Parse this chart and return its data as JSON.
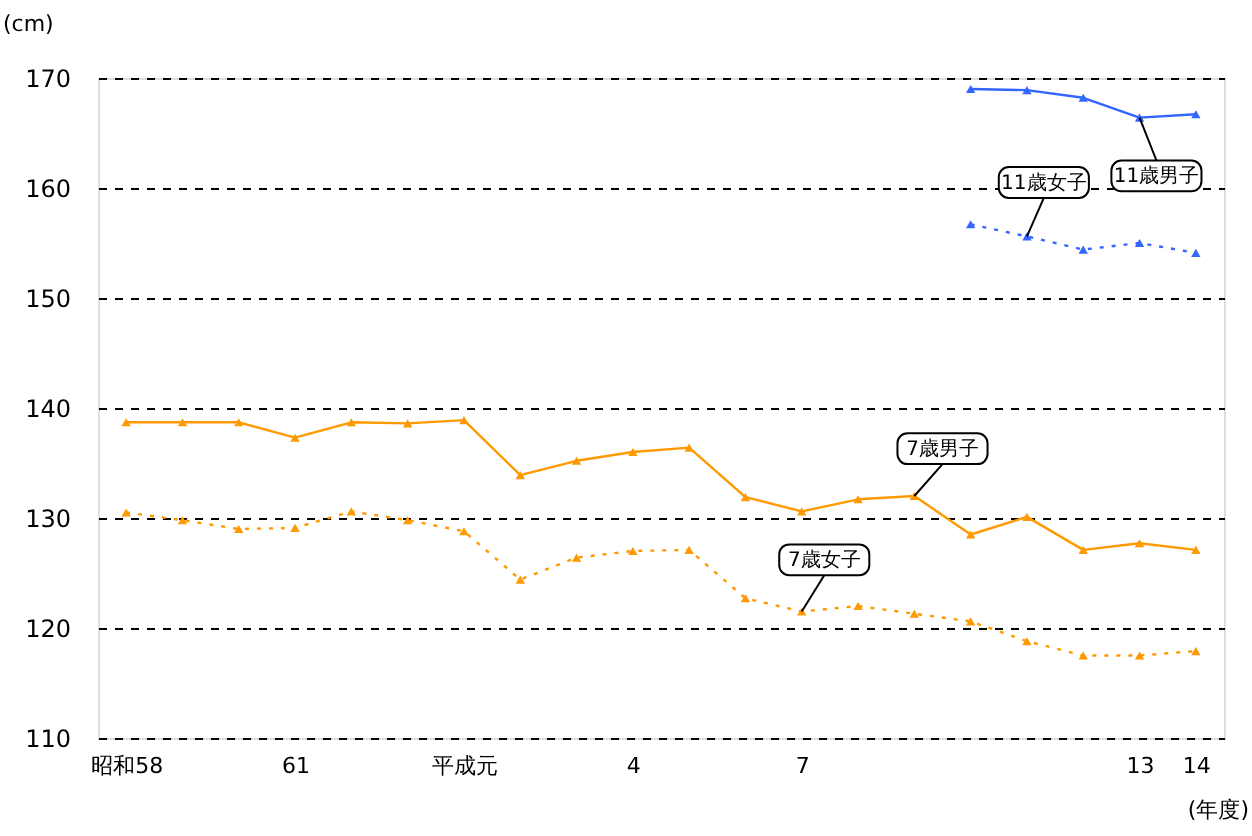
{
  "chart_data": {
    "type": "line",
    "categories": [
      "昭和58",
      null,
      null,
      "61",
      null,
      null,
      "平成元",
      null,
      null,
      "4",
      null,
      null,
      "7",
      null,
      null,
      null,
      null,
      null,
      "13",
      "14"
    ],
    "xlabel": "(年度)",
    "ylabel": "(cm)",
    "ylim": [
      110,
      170
    ],
    "yticks": [
      110,
      120,
      130,
      140,
      150,
      160,
      170
    ],
    "grid": "y",
    "legend": false,
    "marker": "triangle",
    "series": [
      {
        "name": "7歳男子",
        "color": "#ff9900",
        "line_style": "solid",
        "values": [
          138.7,
          138.7,
          138.7,
          137.3,
          138.7,
          138.6,
          138.9,
          133.9,
          135.2,
          136.0,
          136.4,
          131.9,
          130.6,
          131.7,
          132.0,
          128.5,
          130.1,
          127.1,
          127.7,
          127.1
        ]
      },
      {
        "name": "7歳女子",
        "color": "#ff9900",
        "line_style": "dotted",
        "values": [
          130.5,
          129.8,
          129.0,
          129.1,
          130.6,
          129.8,
          128.8,
          124.4,
          126.4,
          127.0,
          127.1,
          122.7,
          121.5,
          122.0,
          121.3,
          120.6,
          118.8,
          117.5,
          117.5,
          117.9
        ]
      },
      {
        "name": "11歳男子",
        "color": "#3366ff",
        "line_style": "solid",
        "values": [
          null,
          null,
          null,
          null,
          null,
          null,
          null,
          null,
          null,
          null,
          null,
          null,
          null,
          null,
          null,
          169.0,
          168.9,
          168.2,
          166.4,
          166.7
        ]
      },
      {
        "name": "11歳女子",
        "color": "#3366ff",
        "line_style": "dotted",
        "values": [
          null,
          null,
          null,
          null,
          null,
          null,
          null,
          null,
          null,
          null,
          null,
          null,
          null,
          null,
          null,
          156.7,
          155.6,
          154.4,
          155.0,
          154.1
        ]
      }
    ]
  }
}
